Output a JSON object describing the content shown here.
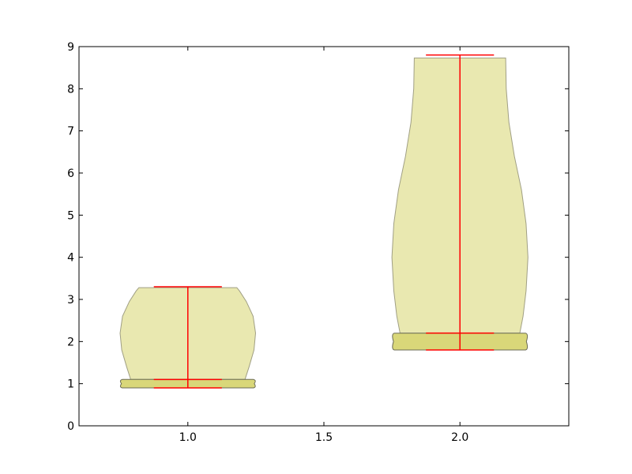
{
  "chart_data": {
    "type": "violin",
    "title": "",
    "xlabel": "",
    "ylabel": "",
    "xlim": [
      0.6,
      2.4
    ],
    "ylim": [
      0,
      9
    ],
    "grid": false,
    "x_ticks": [
      1.0,
      1.5,
      2.0
    ],
    "x_tick_labels": [
      "1.0",
      "1.5",
      "2.0"
    ],
    "y_ticks": [
      0,
      1,
      2,
      3,
      4,
      5,
      6,
      7,
      8,
      9
    ],
    "y_tick_labels": [
      "0",
      "1",
      "2",
      "3",
      "4",
      "5",
      "6",
      "7",
      "8",
      "9"
    ],
    "colors": {
      "body_fill": "#e9e8b0",
      "body_edge": "#a09f84",
      "overlap_fill": "#d9d779",
      "overlap_edge": "#6b6b55",
      "stat_lines": "#ff0000",
      "axes": "#000000"
    },
    "violins": [
      {
        "position": 1.0,
        "min": 0.9,
        "max": 3.3,
        "widest_half_width": 0.25,
        "median": 1.1,
        "cap_half_width": 0.125,
        "lower_overlap": [
          0.9,
          1.1
        ],
        "upper_profile": [
          {
            "y": 1.1,
            "hw": 0.21
          },
          {
            "y": 1.4,
            "hw": 0.225
          },
          {
            "y": 1.8,
            "hw": 0.243
          },
          {
            "y": 2.2,
            "hw": 0.249
          },
          {
            "y": 2.6,
            "hw": 0.24
          },
          {
            "y": 2.95,
            "hw": 0.215
          },
          {
            "y": 3.2,
            "hw": 0.19
          },
          {
            "y": 3.28,
            "hw": 0.18
          }
        ]
      },
      {
        "position": 2.0,
        "min": 1.8,
        "max": 8.8,
        "widest_half_width": 0.25,
        "median": 2.2,
        "cap_half_width": 0.125,
        "lower_overlap": [
          1.8,
          2.2
        ],
        "upper_profile": [
          {
            "y": 2.2,
            "hw": 0.22
          },
          {
            "y": 2.6,
            "hw": 0.232
          },
          {
            "y": 3.2,
            "hw": 0.243
          },
          {
            "y": 4.0,
            "hw": 0.25
          },
          {
            "y": 4.8,
            "hw": 0.243
          },
          {
            "y": 5.6,
            "hw": 0.226
          },
          {
            "y": 6.4,
            "hw": 0.2
          },
          {
            "y": 7.2,
            "hw": 0.18
          },
          {
            "y": 8.0,
            "hw": 0.17
          },
          {
            "y": 8.73,
            "hw": 0.168
          }
        ]
      }
    ]
  }
}
